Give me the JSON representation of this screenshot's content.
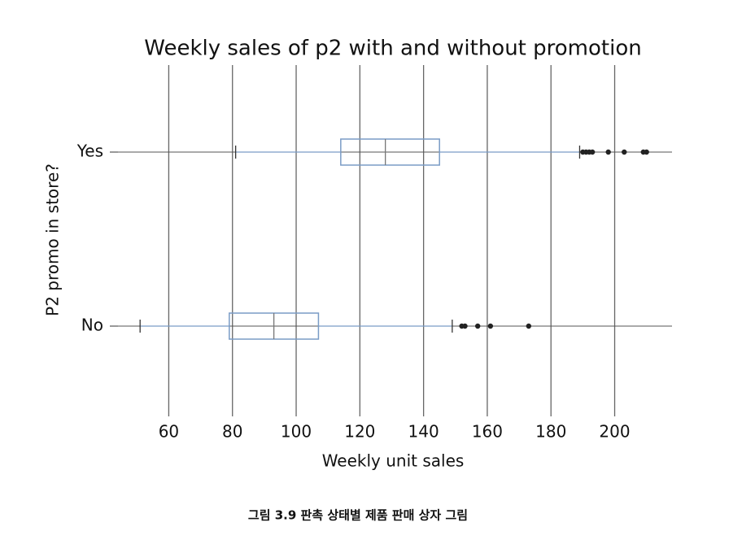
{
  "chart_data": {
    "type": "boxplot",
    "title": "Weekly sales of p2 with and without promotion",
    "x_label": "Weekly unit sales",
    "y_label": "P2 promo in store?",
    "categories": [
      "Yes",
      "No"
    ],
    "boxes": [
      {
        "whislo": 81,
        "q1": 114,
        "med": 128,
        "q3": 145,
        "whishi": 189,
        "fliers": [
          190,
          191,
          192,
          193,
          198,
          203,
          209,
          210
        ]
      },
      {
        "whislo": 51,
        "q1": 79,
        "med": 93,
        "q3": 107,
        "whishi": 149,
        "fliers": [
          152,
          153,
          157,
          161,
          173
        ]
      }
    ],
    "color": "#7a9cc6",
    "xlim": [
      41.5,
      218
    ],
    "xticks": [
      60,
      80,
      100,
      120,
      140,
      160,
      180,
      200
    ],
    "grid": true
  },
  "caption": "그림 3.9 판촉 상태별 제품 판매 상자 그림"
}
